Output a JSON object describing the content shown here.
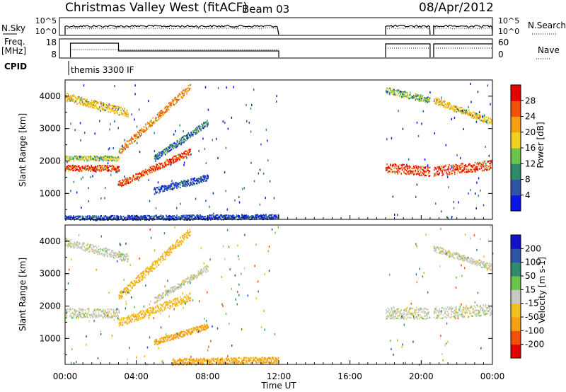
{
  "header": {
    "title": "Christmas Valley West (fitACF)",
    "beam": "Beam 03",
    "date": "08/Apr/2012"
  },
  "noise_panel": {
    "left_label": "N.Sky",
    "right_label": "N.Search",
    "left_ticks": [
      "10^5",
      "10^0"
    ],
    "right_ticks": [
      "10^5",
      "10^0"
    ]
  },
  "freq_panel": {
    "left_label_line1": "Freq.",
    "left_label_line2": "[MHz]",
    "right_label": "Nave",
    "left_ticks": [
      "18",
      "8"
    ],
    "right_ticks": [
      "60",
      "0"
    ]
  },
  "cpid_panel": {
    "label": "CPID",
    "annotation": "themis 3300 IF"
  },
  "time_axis": {
    "title": "Time UT",
    "tick_labels": [
      "00:00",
      "04:00",
      "08:00",
      "12:00",
      "16:00",
      "20:00",
      "00:00"
    ]
  },
  "colors": {
    "power": [
      "#0a14e6",
      "#2e54a8",
      "#2f8a6c",
      "#6cc24a",
      "#f0d020",
      "#f5a010",
      "#f05008",
      "#e60000"
    ],
    "velocity": [
      "#e60000",
      "#f05008",
      "#f5a010",
      "#f0c020",
      "#c8c8c0",
      "#6cc24a",
      "#2f8a6c",
      "#2e54a8",
      "#1410c8"
    ]
  },
  "chart_data": [
    {
      "type": "heatmap",
      "name": "power",
      "ylabel": "Slant Range [km]",
      "colorbar_label": "Power [dB]",
      "colorbar_ticks": [
        "4",
        "8",
        "12",
        "16",
        "20",
        "24",
        "28"
      ],
      "y_ticks": [
        "1000",
        "2000",
        "3000",
        "4000"
      ],
      "x_range_hours": [
        0,
        24
      ],
      "y_range_km": [
        200,
        4500
      ],
      "data_gaps_hours": [
        [
          12,
          18
        ],
        [
          20.5,
          20.7
        ]
      ],
      "echo_bands": [
        {
          "t0": 0.0,
          "t1": 3.0,
          "r0": 1800,
          "r1": 1800,
          "width": 180,
          "level": 28
        },
        {
          "t0": 0.0,
          "t1": 3.0,
          "r0": 2100,
          "r1": 2100,
          "width": 150,
          "level": 16
        },
        {
          "t0": 0.0,
          "t1": 3.5,
          "r0": 4000,
          "r1": 3500,
          "width": 250,
          "level": 20
        },
        {
          "t0": 3.0,
          "t1": 7.0,
          "r0": 1300,
          "r1": 2300,
          "width": 200,
          "level": 28
        },
        {
          "t0": 3.0,
          "t1": 7.0,
          "r0": 2300,
          "r1": 4300,
          "width": 220,
          "level": 24
        },
        {
          "t0": 5.0,
          "t1": 8.0,
          "r0": 2100,
          "r1": 3200,
          "width": 200,
          "level": 10
        },
        {
          "t0": 5.0,
          "t1": 8.0,
          "r0": 1100,
          "r1": 1500,
          "width": 200,
          "level": 6
        },
        {
          "t0": 0.0,
          "t1": 12.0,
          "r0": 250,
          "r1": 300,
          "width": 150,
          "level": 6
        },
        {
          "t0": 18.0,
          "t1": 20.5,
          "r0": 1800,
          "r1": 1700,
          "width": 300,
          "level": 28
        },
        {
          "t0": 20.7,
          "t1": 24.0,
          "r0": 1700,
          "r1": 1900,
          "width": 300,
          "level": 28
        },
        {
          "t0": 18.0,
          "t1": 20.5,
          "r0": 4200,
          "r1": 3900,
          "width": 200,
          "level": 14
        },
        {
          "t0": 20.7,
          "t1": 24.0,
          "r0": 3900,
          "r1": 3200,
          "width": 200,
          "level": 20
        }
      ]
    },
    {
      "type": "heatmap",
      "name": "velocity",
      "ylabel": "Slant Range [km]",
      "colorbar_label": "Velocity [m s-1]",
      "colorbar_ticks": [
        "-200",
        "-100",
        "-50",
        "-15",
        "15",
        "50",
        "100",
        "200"
      ],
      "y_ticks": [
        "1000",
        "2000",
        "3000",
        "4000"
      ],
      "x_range_hours": [
        0,
        24
      ],
      "y_range_km": [
        200,
        4500
      ],
      "data_gaps_hours": [
        [
          12,
          18
        ],
        [
          20.5,
          20.7
        ]
      ],
      "echo_bands": [
        {
          "t0": 0.0,
          "t1": 3.0,
          "r0": 1800,
          "r1": 1800,
          "width": 300,
          "level": 0
        },
        {
          "t0": 0.0,
          "t1": 3.5,
          "r0": 4000,
          "r1": 3500,
          "width": 250,
          "level": 0
        },
        {
          "t0": 3.0,
          "t1": 7.0,
          "r0": 1500,
          "r1": 2300,
          "width": 250,
          "level": -40
        },
        {
          "t0": 3.0,
          "t1": 7.0,
          "r0": 2300,
          "r1": 4300,
          "width": 250,
          "level": -40
        },
        {
          "t0": 5.0,
          "t1": 8.0,
          "r0": 2200,
          "r1": 3200,
          "width": 200,
          "level": 0
        },
        {
          "t0": 5.0,
          "t1": 8.0,
          "r0": 900,
          "r1": 1400,
          "width": 180,
          "level": -60
        },
        {
          "t0": 6.0,
          "t1": 12.0,
          "r0": 300,
          "r1": 350,
          "width": 200,
          "level": -60
        },
        {
          "t0": 18.0,
          "t1": 20.5,
          "r0": 1800,
          "r1": 1800,
          "width": 350,
          "level": 0
        },
        {
          "t0": 20.7,
          "t1": 24.0,
          "r0": 1800,
          "r1": 1900,
          "width": 350,
          "level": 0
        },
        {
          "t0": 20.7,
          "t1": 24.0,
          "r0": 3800,
          "r1": 3200,
          "width": 200,
          "level": 0
        }
      ]
    }
  ]
}
